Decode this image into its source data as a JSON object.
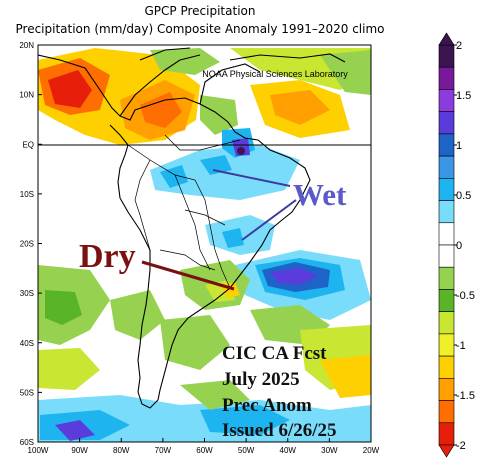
{
  "title": "GPCP Precipitation",
  "subtitle": "Precipitation (mm/day) Composite Anomaly 1991–2020 climo",
  "credit": "NOAA Physical Sciences Laboratory",
  "annotations": {
    "wet": "Wet",
    "dry": "Dry"
  },
  "forecast_lines": [
    "CIC CA Fcst",
    "July 2025",
    "Prec Anom",
    "Issued 6/26/25"
  ],
  "lat_labels": [
    "20N",
    "10N",
    "EQ",
    "10S",
    "20S",
    "30S",
    "40S",
    "50S",
    "60S"
  ],
  "lon_labels": [
    "100W",
    "90W",
    "80W",
    "70W",
    "60W",
    "50W",
    "40W",
    "30W",
    "20W"
  ],
  "colorbar": {
    "ticks": [
      "2",
      "1.5",
      "1",
      "0.5",
      "0",
      "-0.5",
      "-1",
      "-1.5",
      "-2"
    ],
    "colors": [
      "#3c1450",
      "#7a189c",
      "#8c3cdc",
      "#5a3cdc",
      "#1e64c8",
      "#3c96e6",
      "#1eb4f0",
      "#78dcfa",
      "#ffffff",
      "#ffffff",
      "#96d250",
      "#5ab428",
      "#c8e632",
      "#f0f028",
      "#ffd000",
      "#ffa000",
      "#ff6e00",
      "#e61e0a"
    ]
  }
}
